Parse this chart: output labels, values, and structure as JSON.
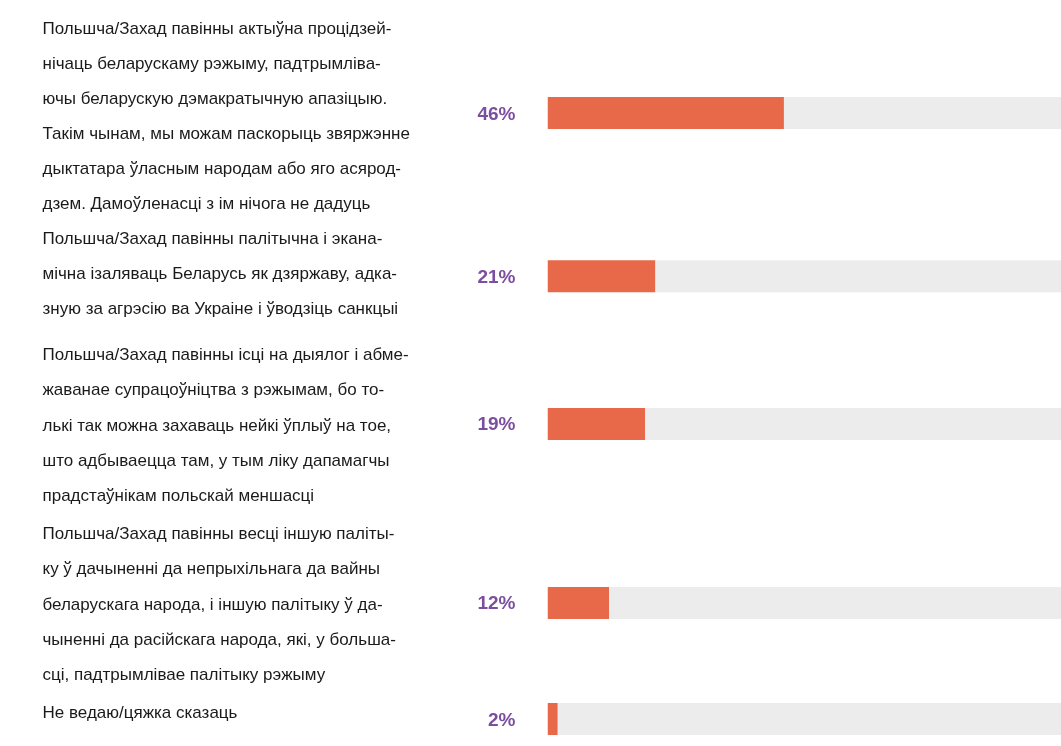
{
  "chart_data": {
    "type": "bar",
    "orientation": "horizontal",
    "categories": [
      "Польшча/Захад павінны актыўна процідзей-\nнічаць беларускаму рэжыму, падтрымліва-\nючы беларускую дэмакратычную апазіцыю.\nТакім чынам, мы можам паскорыць звяржэнне\nдыктатара ўласным народам або яго асярод-\nдзем. Дамоўленасці з ім нічога не дадуць",
      "Польшча/Захад павінны палітычна і экана-\nмічна ізаляваць Беларусь як дзяржаву, адка-\nзную за агрэсію ва Украіне і ўводзіць санкцыі",
      "Польшча/Захад павінны ісці на дыялог і абме-\nжаванае супрацоўніцтва з рэжымам, бо то-\nлькі так можна захаваць нейкі ўплыў на тое,\nшто адбываецца там, у тым ліку дапамагчы\nпрадстаўнікам польскай меншасці",
      "Польшча/Захад павінны весці іншую паліты-\nку ў дачыненні да непрыхільнага да вайны\nбеларускага народа, і іншую палітыку ў да-\nчыненні да расійскага народа, які, у больша-\nсці, падтрымлівае палітыку рэжыму",
      "Не ведаю/цяжка сказаць"
    ],
    "stacked": true,
    "series": [
      {
        "color": "#e8694a",
        "values": [
          46,
          21,
          19,
          12,
          2
        ],
        "value_labels": [
          "46%",
          "21%",
          "19%",
          "12%",
          "2%"
        ]
      },
      {
        "color": "#ececec",
        "values": [
          54,
          79,
          81,
          88,
          98
        ]
      }
    ],
    "xlim": [
      0,
      100
    ]
  }
}
